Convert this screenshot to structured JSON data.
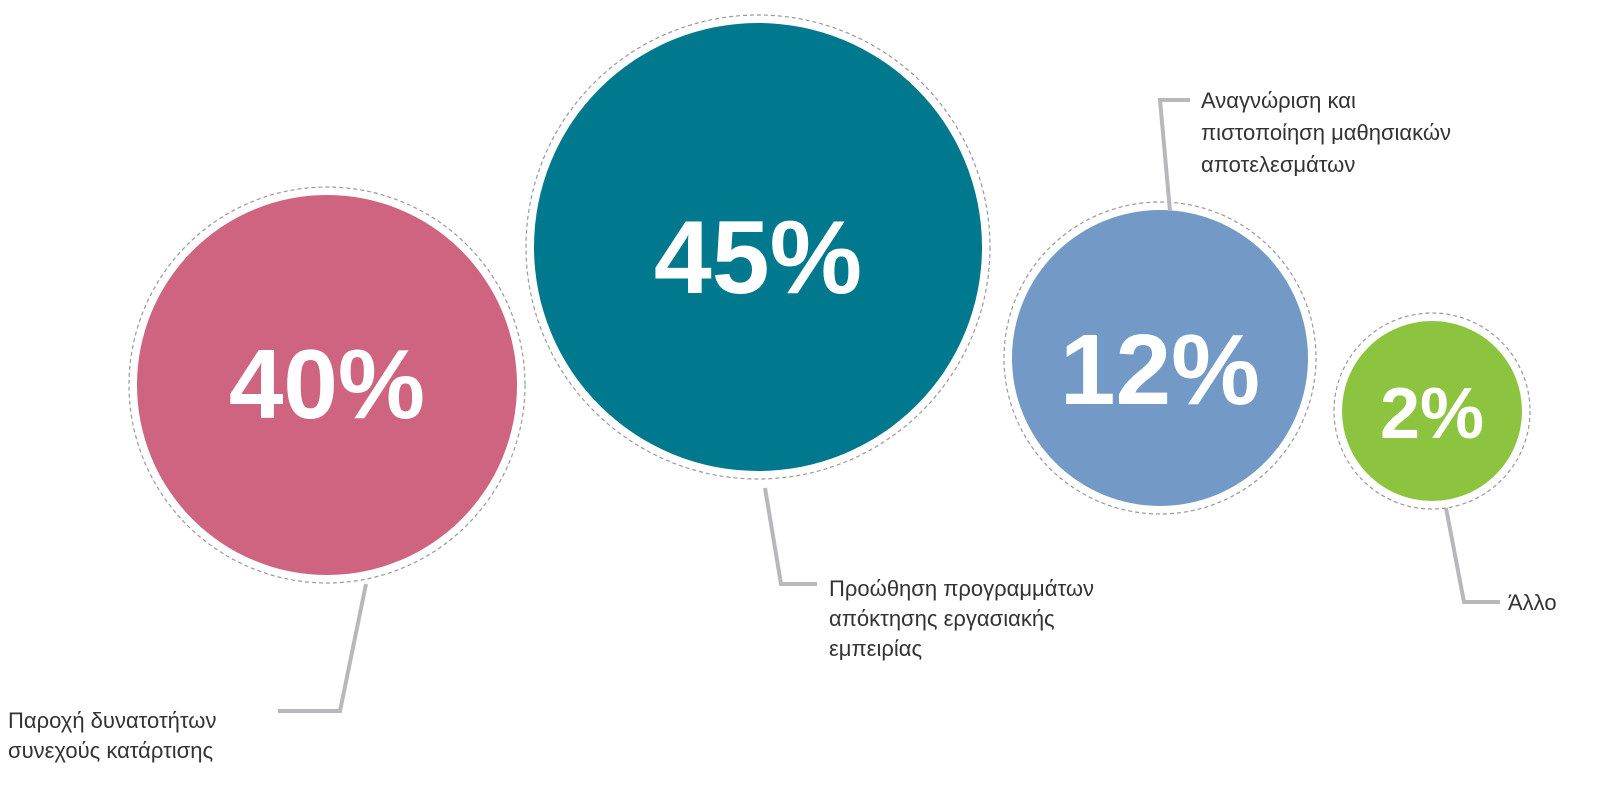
{
  "chart_data": {
    "type": "bubble",
    "categories": [
      "Παροχή δυνατοτήτων συνεχούς κατάρτισης",
      "Προώθηση προγραμμάτων απόκτησης εργασιακής εμπειρίας",
      "Αναγνώριση και πιστοποίηση μαθησιακών αποτελεσμάτων",
      "Άλλο"
    ],
    "values": [
      40,
      45,
      12,
      2
    ],
    "value_labels": [
      "40%",
      "45%",
      "12%",
      "2%"
    ],
    "label_lines": [
      [
        "Παροχή δυνατοτήτων",
        "συνεχούς κατάρτισης"
      ],
      [
        "Προώθηση προγραμμάτων",
        "απόκτησης εργασιακής",
        "εμπειρίας"
      ],
      [
        "Αναγνώριση και",
        "πιστοποίηση μαθησιακών",
        "αποτελεσμάτων"
      ],
      [
        "Άλλο"
      ]
    ],
    "colors": [
      "#cf6480",
      "#00788d",
      "#7399c6",
      "#8cc43f"
    ],
    "leader_color": "#b8b8bc",
    "ring_color": "#999999",
    "title": "",
    "xlabel": "",
    "ylabel": ""
  }
}
